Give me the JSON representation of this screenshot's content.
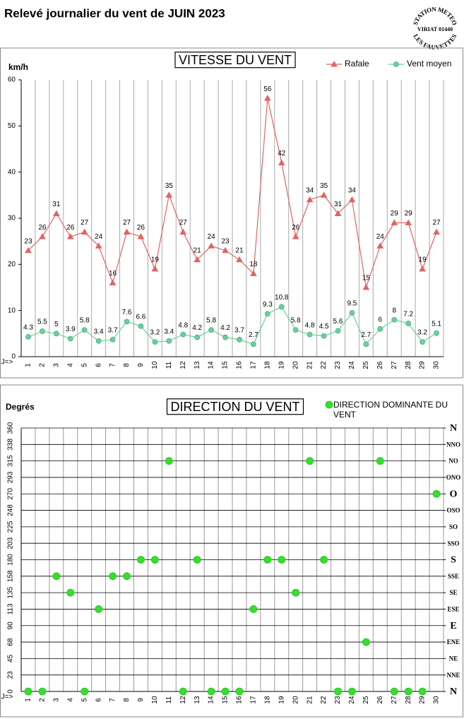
{
  "header": {
    "title": "Relevé journalier du vent de JUIN 2023",
    "stamp": {
      "top": "STATION METEO",
      "middle": "VIRIAT 01440",
      "bottom": "LES FAUVETTES"
    }
  },
  "chart_data": [
    {
      "type": "line",
      "title": "VITESSE DU VENT",
      "y_label": "km/h",
      "x_label": "J=>",
      "categories": [
        "1",
        "2",
        "3",
        "4",
        "5",
        "6",
        "7",
        "8",
        "9",
        "10",
        "11",
        "12",
        "13",
        "14",
        "15",
        "16",
        "17",
        "18",
        "19",
        "20",
        "21",
        "22",
        "23",
        "24",
        "25",
        "26",
        "27",
        "28",
        "29",
        "30"
      ],
      "series": [
        {
          "name": "Rafale",
          "color": "#e06464",
          "marker": "triangle",
          "values": [
            23,
            26,
            31,
            26,
            27,
            24,
            16,
            27,
            26,
            19,
            35,
            27,
            21,
            24,
            23,
            21,
            18,
            56,
            42,
            26,
            34,
            35,
            31,
            34,
            15,
            24,
            29,
            29,
            19,
            27
          ]
        },
        {
          "name": "Vent moyen",
          "color": "#6ccf9c",
          "marker": "circle",
          "values": [
            4.3,
            5.5,
            5,
            3.9,
            5.8,
            3.4,
            3.7,
            7.6,
            6.6,
            3.2,
            3.4,
            4.8,
            4.2,
            5.8,
            4.2,
            3.7,
            2.7,
            9.3,
            10.8,
            5.8,
            4.8,
            4.5,
            5.6,
            9.5,
            2.7,
            6,
            8,
            7.2,
            3.2,
            5.1
          ]
        }
      ],
      "ylim": [
        0,
        60
      ],
      "yticks": [
        0,
        10,
        20,
        30,
        40,
        50,
        60
      ],
      "grid": "x",
      "show_values": true,
      "legend": "top-right"
    },
    {
      "type": "scatter",
      "title": "DIRECTION DU VENT",
      "y_label": "Degrés",
      "x_label": "J=>",
      "categories": [
        "1",
        "2",
        "3",
        "4",
        "5",
        "6",
        "7",
        "8",
        "9",
        "10",
        "11",
        "12",
        "13",
        "14",
        "15",
        "16",
        "17",
        "18",
        "19",
        "20",
        "21",
        "22",
        "23",
        "24",
        "25",
        "26",
        "27",
        "28",
        "29",
        "30"
      ],
      "series": [
        {
          "name": "DIRECTION DOMINANTE DU VENT",
          "color": "#33e02a",
          "marker": "circle",
          "values": [
            0,
            0,
            157.5,
            135,
            0,
            112.5,
            157.5,
            157.5,
            180,
            180,
            315,
            0,
            180,
            0,
            0,
            0,
            112.5,
            180,
            180,
            135,
            315,
            180,
            0,
            0,
            67.5,
            315,
            0,
            0,
            0,
            270
          ]
        }
      ],
      "ylim": [
        0,
        360
      ],
      "yticks": [
        0,
        {
          "value": 22.5,
          "label": "23"
        },
        45,
        {
          "value": 67.5,
          "label": "68"
        },
        90,
        {
          "value": 112.5,
          "label": "113"
        },
        135,
        {
          "value": 157.5,
          "label": "158"
        },
        180,
        {
          "value": 202.5,
          "label": "203"
        },
        225,
        {
          "value": 247.5,
          "label": "248"
        },
        270,
        {
          "value": 292.5,
          "label": "293"
        },
        315,
        {
          "value": 337.5,
          "label": "338"
        },
        360
      ],
      "y2lim": [
        0,
        360
      ],
      "y2ticks": [
        {
          "value": 0,
          "label": "N"
        },
        {
          "value": 22.5,
          "label": "NNE"
        },
        {
          "value": 45,
          "label": "NE"
        },
        {
          "value": 67.5,
          "label": "ENE"
        },
        {
          "value": 90,
          "label": "E"
        },
        {
          "value": 112.5,
          "label": "ESE"
        },
        {
          "value": 135,
          "label": "SE"
        },
        {
          "value": 157.5,
          "label": "SSE"
        },
        {
          "value": 180,
          "label": "S"
        },
        {
          "value": 202.5,
          "label": "SSO"
        },
        {
          "value": 225,
          "label": "SO"
        },
        {
          "value": 247.5,
          "label": "OSO"
        },
        {
          "value": 270,
          "label": "O"
        },
        {
          "value": 292.5,
          "label": "ONO"
        },
        {
          "value": 315,
          "label": "NO"
        },
        {
          "value": 337.5,
          "label": "NNO"
        },
        {
          "value": 360,
          "label": "N"
        }
      ],
      "grid": "both",
      "legend": "top-right"
    }
  ]
}
